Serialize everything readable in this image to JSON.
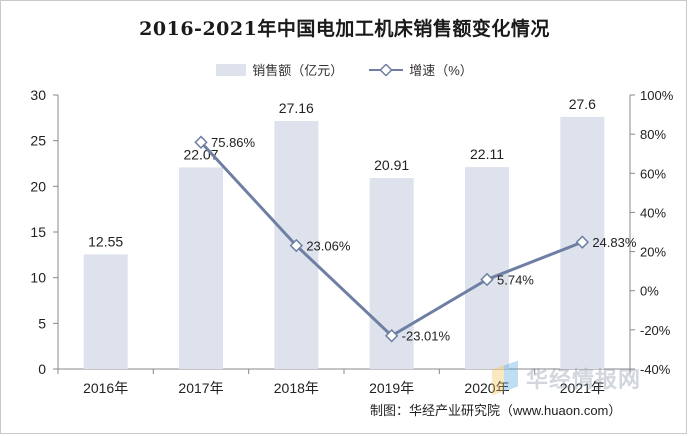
{
  "title": "2016-2021年中国电加工机床销售额变化情况",
  "legend": {
    "bar_label": "销售额（亿元）",
    "line_label": "增速（%）"
  },
  "source": "制图：华经产业研究院（www.huaon.com）",
  "watermark": "华经情报网",
  "colors": {
    "bar": "#dde2ec",
    "line": "#6e7fa3",
    "marker_fill": "#ffffff"
  },
  "chart_data": {
    "type": "bar",
    "categories": [
      "2016年",
      "2017年",
      "2018年",
      "2019年",
      "2020年",
      "2021年"
    ],
    "series": [
      {
        "name": "销售额（亿元）",
        "type": "bar",
        "axis": "left",
        "values": [
          12.55,
          22.07,
          27.16,
          20.91,
          22.11,
          27.6
        ],
        "labels": [
          "12.55",
          "22.07",
          "27.16",
          "20.91",
          "22.11",
          "27.6"
        ]
      },
      {
        "name": "增速（%）",
        "type": "line",
        "axis": "right",
        "values": [
          null,
          75.86,
          23.06,
          -23.01,
          5.74,
          24.83
        ],
        "labels": [
          "",
          "75.86%",
          "23.06%",
          "-23.01%",
          "5.74%",
          "24.83%"
        ]
      }
    ],
    "y_left": {
      "min": 0,
      "max": 30,
      "ticks": [
        "0",
        "5",
        "10",
        "15",
        "20",
        "25",
        "30"
      ]
    },
    "y_right": {
      "min": -40,
      "max": 100,
      "ticks": [
        "-40%",
        "-20%",
        "0%",
        "20%",
        "40%",
        "60%",
        "80%",
        "100%"
      ]
    },
    "grid": false,
    "legend_position": "top"
  }
}
